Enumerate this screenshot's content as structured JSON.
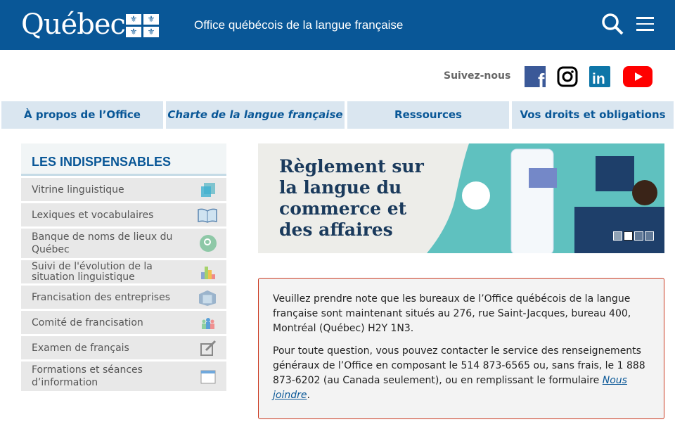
{
  "header": {
    "logo": "Québec",
    "office": "Office québécois de la langue française"
  },
  "social": {
    "label": "Suivez-nous",
    "items": [
      "facebook-icon",
      "instagram-icon",
      "linkedin-icon",
      "youtube-icon"
    ]
  },
  "nav": [
    "À propos de l’Office",
    "Charte de la langue française",
    "Ressources",
    "Vos droits et obligations"
  ],
  "sidebar": {
    "title": "LES INDISPENSABLES",
    "items": [
      {
        "label": "Vitrine linguistique",
        "icon": "squares-icon"
      },
      {
        "label": "Lexiques et vocabulaires",
        "icon": "book-icon"
      },
      {
        "label": "Banque de noms de lieux du Québec",
        "icon": "map-pin-icon"
      },
      {
        "label": "Suivi de l'évolution de la situation linguistique",
        "icon": "bar-chart-icon"
      },
      {
        "label": "Francisation des entreprises",
        "icon": "building-icon"
      },
      {
        "label": "Comité de francisation",
        "icon": "people-icon"
      },
      {
        "label": "Examen de français",
        "icon": "edit-icon"
      },
      {
        "label": "Formations et séances d’information",
        "icon": "calendar-icon"
      }
    ]
  },
  "banner": {
    "title": "Règlement sur la langue du commerce et des affaires",
    "slides": 4,
    "active_slide": 2
  },
  "notice": {
    "p1": "Veuillez prendre note que les bureaux de l’Office québécois de la langue française sont maintenant situés au 276, rue Saint-Jacques, bureau 400, Montréal (Québec) H2Y 1N3.",
    "p2": "Pour toute question, vous pouvez contacter le service des renseignements généraux de l’Office en composant le 514 873-6565 ou, sans frais, le 1 888 873-6202 (au Canada seulement), ou en remplissant le formulaire",
    "link": "Nous joindre",
    "end": "."
  }
}
